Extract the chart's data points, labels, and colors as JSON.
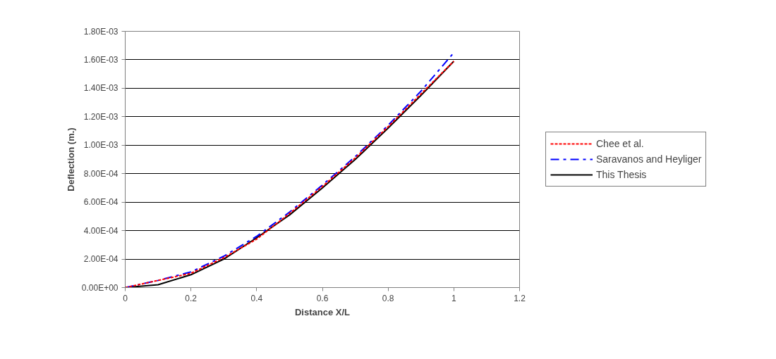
{
  "chart_data": {
    "type": "line",
    "xlabel": "Distance X/L",
    "ylabel": "Deflection (m.)",
    "x": [
      0,
      0.1,
      0.2,
      0.3,
      0.4,
      0.5,
      0.6,
      0.7,
      0.8,
      0.9,
      1.0
    ],
    "series": [
      {
        "name": "Chee et al.",
        "color": "#ff0000",
        "line_style": "dotted",
        "values": [
          0,
          5e-05,
          0.0001,
          0.00021,
          0.00034,
          0.00052,
          0.00071,
          0.00091,
          0.00113,
          0.00136,
          0.00159
        ]
      },
      {
        "name": "Saravanos and Heyliger",
        "color": "#0000ff",
        "line_style": "dashdot",
        "values": [
          0,
          5e-05,
          0.00011,
          0.00022,
          0.00036,
          0.00053,
          0.00072,
          0.00092,
          0.00114,
          0.00138,
          0.00165
        ]
      },
      {
        "name": "This Thesis",
        "color": "#000000",
        "line_style": "solid",
        "values": [
          0,
          2e-05,
          9e-05,
          0.0002,
          0.00035,
          0.00051,
          0.0007,
          0.0009,
          0.00112,
          0.00135,
          0.00159
        ]
      }
    ],
    "xlim": [
      0,
      1.2
    ],
    "xticks": [
      0,
      0.2,
      0.4,
      0.6,
      0.8,
      1,
      1.2
    ],
    "ylim": [
      0,
      0.0018
    ],
    "yticks": [
      {
        "value": 0,
        "label": "0.00E+00"
      },
      {
        "value": 0.0002,
        "label": "2.00E-04"
      },
      {
        "value": 0.0004,
        "label": "4.00E-04"
      },
      {
        "value": 0.0006,
        "label": "6.00E-04"
      },
      {
        "value": 0.0008,
        "label": "8.00E-04"
      },
      {
        "value": 0.001,
        "label": "1.00E-03"
      },
      {
        "value": 0.0012,
        "label": "1.20E-03"
      },
      {
        "value": 0.0014,
        "label": "1.40E-03"
      },
      {
        "value": 0.0016,
        "label": "1.60E-03"
      },
      {
        "value": 0.0018,
        "label": "1.80E-03"
      }
    ],
    "grid": "y",
    "legend": "right",
    "marker": "none"
  }
}
